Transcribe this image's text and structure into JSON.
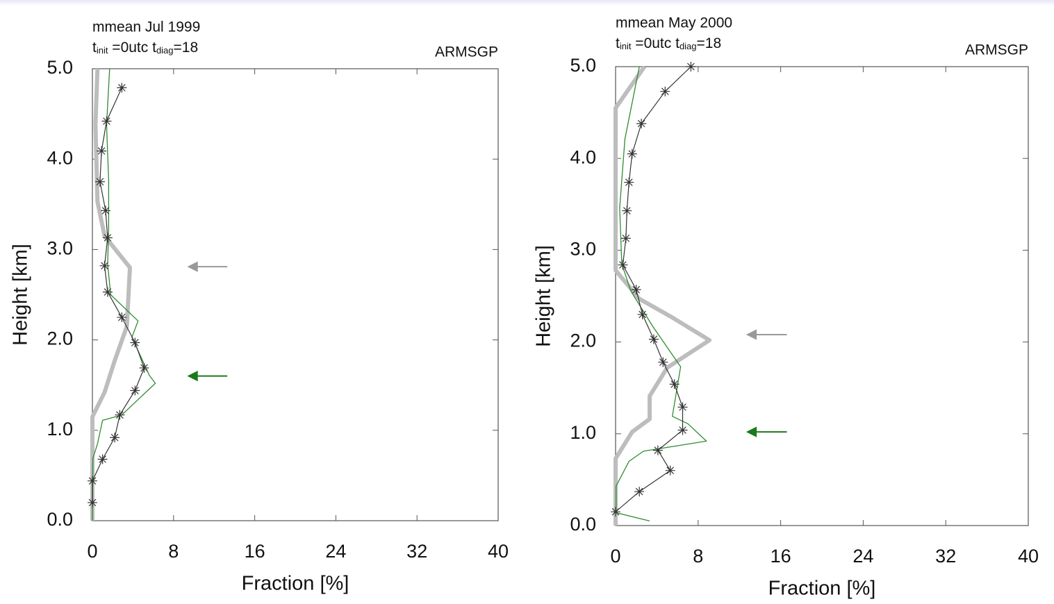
{
  "chart_data": [
    {
      "type": "line",
      "title": "mmean  Jul 1999",
      "subtitle_parts": [
        "t",
        "init",
        " =0utc  t",
        "diag",
        "=18"
      ],
      "site": "ARMSGP",
      "x_label": "Fraction  [%]",
      "y_label": "Height  [km]",
      "xlim": [
        0,
        40
      ],
      "xticks": [
        0,
        8,
        16,
        24,
        32,
        40
      ],
      "ylim": [
        0,
        5
      ],
      "yticks": [
        {
          "value": 0,
          "label": "0.0"
        },
        {
          "value": 1,
          "label": "1.0"
        },
        {
          "value": 2,
          "label": "2.0"
        },
        {
          "value": 3,
          "label": "3.0"
        },
        {
          "value": 4,
          "label": "4.0"
        },
        {
          "value": 5,
          "label": "5.0"
        }
      ],
      "series": [
        {
          "color": "#bdbdbd",
          "style": "thick",
          "x": [
            0,
            0,
            1.2,
            2.2,
            3.4,
            3.7,
            1.2,
            0.5,
            0.3,
            0.5
          ],
          "y": [
            0,
            1.15,
            1.42,
            1.77,
            2.15,
            2.8,
            3.15,
            3.53,
            4.38,
            5.0
          ]
        },
        {
          "color": "#2e8b2e",
          "style": "thin",
          "x": [
            0,
            0.05,
            0.5,
            1.0,
            2.9,
            6.2,
            5.6,
            3.9,
            4.5,
            1.8,
            1.5,
            1.6,
            1.6,
            1.4,
            1.7
          ],
          "y": [
            0,
            0.69,
            0.85,
            1.11,
            1.17,
            1.52,
            1.61,
            2.03,
            2.21,
            2.5,
            2.84,
            3.23,
            3.76,
            4.38,
            5.0
          ]
        },
        {
          "color": "#333333",
          "style": "star",
          "x": [
            0,
            0,
            1.0,
            2.2,
            2.7,
            4.2,
            5.1,
            4.2,
            2.9,
            1.5,
            1.2,
            1.5,
            1.3,
            0.75,
            0.9,
            1.4,
            2.9
          ],
          "y": [
            0.2,
            0.44,
            0.68,
            0.92,
            1.17,
            1.44,
            1.69,
            1.97,
            2.25,
            2.53,
            2.82,
            3.13,
            3.43,
            3.75,
            4.09,
            4.42,
            4.79
          ]
        }
      ],
      "arrows": [
        {
          "y": 2.81,
          "x": [
            13.3,
            9.5
          ],
          "color": "#999999"
        },
        {
          "y": 1.6,
          "x": [
            13.3,
            9.5
          ],
          "color": "#1a7a1a"
        }
      ]
    },
    {
      "type": "line",
      "title": "mmean  May 2000",
      "subtitle_parts": [
        "t",
        "init",
        " =0utc  t",
        "diag",
        "=18"
      ],
      "site": "ARMSGP",
      "x_label": "Fraction  [%]",
      "y_label": "Height  [km]",
      "xlim": [
        0,
        40
      ],
      "xticks": [
        0,
        8,
        16,
        24,
        32,
        40
      ],
      "ylim": [
        0,
        5
      ],
      "yticks": [
        {
          "value": 0,
          "label": "0.0"
        },
        {
          "value": 1,
          "label": "1.0"
        },
        {
          "value": 2,
          "label": "2.0"
        },
        {
          "value": 3,
          "label": "3.0"
        },
        {
          "value": 4,
          "label": "4.0"
        },
        {
          "value": 5,
          "label": "5.0"
        }
      ],
      "series": [
        {
          "color": "#bdbdbd",
          "style": "thick",
          "x": [
            0,
            0,
            1.6,
            3.3,
            3.3,
            5.0,
            9.1,
            5.3,
            2.3,
            0,
            0,
            0,
            2.8
          ],
          "y": [
            0,
            0.73,
            1.02,
            1.16,
            1.41,
            1.72,
            2.02,
            2.28,
            2.47,
            2.78,
            3.46,
            4.55,
            5.0
          ]
        },
        {
          "color": "#2e8b2e",
          "style": "thin",
          "x": [
            3.3,
            0.05,
            0.05,
            1.3,
            2.7,
            8.8,
            7.0,
            5.5,
            6.3,
            3.6,
            1.5,
            0.6,
            0.4,
            0.9,
            2.3
          ],
          "y": [
            0.05,
            0.14,
            0.43,
            0.7,
            0.81,
            0.92,
            1.11,
            1.19,
            1.73,
            2.17,
            2.55,
            2.85,
            3.46,
            4.21,
            5.0
          ]
        },
        {
          "color": "#333333",
          "style": "star",
          "x": [
            0,
            2.3,
            5.3,
            4.1,
            6.5,
            6.5,
            5.7,
            4.6,
            3.7,
            2.6,
            2.0,
            0.7,
            1.0,
            1.1,
            1.3,
            1.6,
            2.5,
            4.8,
            7.3
          ],
          "y": [
            0.15,
            0.37,
            0.6,
            0.82,
            1.04,
            1.29,
            1.54,
            1.78,
            2.03,
            2.3,
            2.57,
            2.84,
            3.13,
            3.43,
            3.74,
            4.05,
            4.38,
            4.73,
            5.0
          ]
        }
      ],
      "arrows": [
        {
          "y": 2.08,
          "x": [
            16.6,
            12.8
          ],
          "color": "#999999"
        },
        {
          "y": 1.02,
          "x": [
            16.6,
            12.8
          ],
          "color": "#1a7a1a"
        }
      ]
    }
  ]
}
